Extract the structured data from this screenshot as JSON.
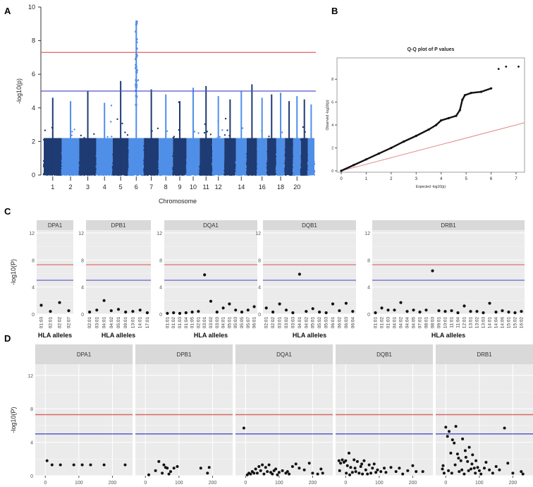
{
  "chart_data": [
    {
      "panel": "A",
      "type": "scatter",
      "subtype": "manhattan",
      "xlabel": "Chromosome",
      "ylabel": "-log10(p)",
      "ylim": [
        0,
        10
      ],
      "yticks": [
        "0",
        "2",
        "4",
        "6",
        "8",
        "10"
      ],
      "xtick_labels": [
        "1",
        "2",
        "3",
        "4",
        "5",
        "6",
        "7",
        "8",
        "9",
        "10",
        "11",
        "12",
        "14",
        "16",
        "18",
        "20"
      ],
      "chromosomes": [
        {
          "chr": 1,
          "peak": 4.6
        },
        {
          "chr": 2,
          "peak": 4.4
        },
        {
          "chr": 3,
          "peak": 5.0
        },
        {
          "chr": 4,
          "peak": 4.3
        },
        {
          "chr": 5,
          "peak": 5.6
        },
        {
          "chr": 6,
          "peak": 9.2
        },
        {
          "chr": 7,
          "peak": 5.1
        },
        {
          "chr": 8,
          "peak": 4.8
        },
        {
          "chr": 9,
          "peak": 4.4
        },
        {
          "chr": 10,
          "peak": 5.2
        },
        {
          "chr": 11,
          "peak": 5.3
        },
        {
          "chr": 12,
          "peak": 4.7
        },
        {
          "chr": 13,
          "peak": 4.5
        },
        {
          "chr": 14,
          "peak": 5.0
        },
        {
          "chr": 15,
          "peak": 5.4
        },
        {
          "chr": 16,
          "peak": 4.6
        },
        {
          "chr": 17,
          "peak": 4.8
        },
        {
          "chr": 18,
          "peak": 4.9
        },
        {
          "chr": 19,
          "peak": 4.4
        },
        {
          "chr": 20,
          "peak": 4.7
        },
        {
          "chr": 21,
          "peak": 4.5
        },
        {
          "chr": 22,
          "peak": 4.2
        }
      ],
      "thresholds": [
        {
          "value": 7.3,
          "color": "#e06060"
        },
        {
          "value": 5.0,
          "color": "#5555cc"
        }
      ],
      "colors": {
        "dark": "#1f3b73",
        "light": "#4f8fe8"
      }
    },
    {
      "panel": "B",
      "type": "scatter",
      "subtype": "qq",
      "title": "Q-Q plot of P values",
      "xlabel": "Expected -log10(p)",
      "ylabel": "Observed -log10(p)",
      "xlim": [
        0,
        7
      ],
      "ylim": [
        0,
        9
      ],
      "xticks": [
        "0",
        "1",
        "2",
        "3",
        "4",
        "5",
        "6",
        "7"
      ],
      "yticks": [
        "0",
        "2",
        "4",
        "6",
        "8"
      ],
      "points": [
        [
          0,
          0
        ],
        [
          0.5,
          0.5
        ],
        [
          1,
          1
        ],
        [
          1.5,
          1.5
        ],
        [
          2,
          2
        ],
        [
          2.5,
          2.55
        ],
        [
          3,
          3.05
        ],
        [
          3.5,
          3.6
        ],
        [
          3.8,
          4.0
        ],
        [
          4.0,
          4.4
        ],
        [
          4.3,
          4.6
        ],
        [
          4.6,
          4.8
        ],
        [
          4.75,
          5.3
        ],
        [
          4.85,
          6.2
        ],
        [
          4.95,
          6.6
        ],
        [
          5.2,
          6.8
        ],
        [
          5.6,
          6.9
        ],
        [
          6.0,
          7.2
        ],
        [
          6.3,
          8.9
        ],
        [
          6.6,
          9.1
        ],
        [
          7.1,
          9.1
        ]
      ],
      "reference_line": [
        [
          0,
          0
        ],
        [
          7.4,
          4.2
        ]
      ]
    },
    {
      "panel": "C",
      "type": "scatter",
      "xlabel": "HLA alleles",
      "ylabel": "-log10(P)",
      "ylim": [
        0,
        12
      ],
      "yticks": [
        "0",
        "4",
        "8",
        "12"
      ],
      "thresholds": [
        {
          "value": 7.3,
          "color": "#e06060"
        },
        {
          "value": 5.0,
          "color": "#5555cc"
        }
      ],
      "facets": [
        {
          "name": "DPA1",
          "alleles": [
            "01:03",
            "02:01",
            "02:02",
            "02:07"
          ],
          "values": [
            1.3,
            0.4,
            1.7,
            0.5
          ]
        },
        {
          "name": "DPB1",
          "alleles": [
            "02:01",
            "03:01",
            "04:01",
            "04:02",
            "05:01",
            "09:01",
            "13:01",
            "14:01",
            "17:01"
          ],
          "values": [
            0.3,
            0.6,
            2.0,
            0.5,
            0.7,
            0.3,
            0.4,
            0.6,
            0.2
          ]
        },
        {
          "name": "DQA1",
          "alleles": [
            "01:01",
            "01:02",
            "01:03",
            "01:04",
            "01:05",
            "02:01",
            "03:01",
            "03:02",
            "03:03",
            "04:01",
            "05:01",
            "05:03",
            "05:05",
            "05:07",
            "06:01"
          ],
          "values": [
            0.1,
            0.2,
            0.1,
            0.2,
            0.3,
            0.4,
            5.8,
            1.9,
            0.3,
            0.9,
            1.5,
            0.6,
            0.3,
            0.6,
            1.1
          ],
          "ticks_at": [
            0,
            1,
            2,
            3,
            4,
            5,
            7,
            8,
            9,
            10,
            11,
            12,
            13,
            14
          ]
        },
        {
          "name": "DQB1",
          "alleles": [
            "02:01",
            "02:02",
            "03:01",
            "03:02",
            "03:03",
            "04:01",
            "04:02",
            "05:01",
            "05:02",
            "05:03",
            "06:01",
            "06:02",
            "06:03",
            "06:04"
          ],
          "values": [
            0.9,
            0.3,
            1.5,
            0.6,
            0.2,
            5.9,
            0.4,
            0.8,
            0.3,
            0.2,
            1.5,
            0.5,
            1.6,
            0.4
          ],
          "ticks_at": [
            0,
            1,
            2,
            3,
            4,
            5,
            7,
            8,
            9,
            10,
            11,
            12,
            13
          ]
        },
        {
          "name": "DRB1",
          "alleles": [
            "01:01",
            "01:02",
            "01:03",
            "04:01",
            "04:02",
            "04:04",
            "04:05",
            "07:01",
            "08:01",
            "08:03",
            "09:01",
            "10:01",
            "11:01",
            "11:04",
            "12:01",
            "13:01",
            "13:02",
            "13:03",
            "14:01",
            "14:04",
            "14:06",
            "15:01",
            "15:02",
            "16:02"
          ],
          "values": [
            0.2,
            0.9,
            0.6,
            0.6,
            1.7,
            0.4,
            0.6,
            0.3,
            0.6,
            6.4,
            0.5,
            0.4,
            0.5,
            0.2,
            1.2,
            0.4,
            0.4,
            0.2,
            1.6,
            0.3,
            0.5,
            0.3,
            0.2,
            0.4
          ]
        }
      ]
    },
    {
      "panel": "D",
      "type": "scatter",
      "ylabel": "-log10(P)",
      "ylim": [
        0,
        13
      ],
      "yticks": [
        "0",
        "4",
        "8",
        "12"
      ],
      "xlim": [
        -30,
        260
      ],
      "xticks": [
        "0",
        "100",
        "200"
      ],
      "thresholds": [
        {
          "value": 7.3,
          "color": "#e06060"
        },
        {
          "value": 5.0,
          "color": "#5555cc"
        }
      ],
      "facets": [
        {
          "name": "DPA1",
          "points": [
            [
              5,
              1.8
            ],
            [
              20,
              1.3
            ],
            [
              45,
              1.3
            ],
            [
              85,
              1.3
            ],
            [
              110,
              1.3
            ],
            [
              135,
              1.3
            ],
            [
              175,
              1.3
            ],
            [
              238,
              1.3
            ]
          ]
        },
        {
          "name": "DPB1",
          "points": [
            [
              10,
              0.1
            ],
            [
              30,
              0.6
            ],
            [
              40,
              1.7
            ],
            [
              55,
              1.3
            ],
            [
              65,
              0.9
            ],
            [
              70,
              0.2
            ],
            [
              75,
              0.5
            ],
            [
              85,
              0.9
            ],
            [
              95,
              1.1
            ],
            [
              165,
              0.9
            ],
            [
              185,
              0.3
            ],
            [
              190,
              1.0
            ],
            [
              60,
              1.0
            ],
            [
              50,
              0.3
            ]
          ]
        },
        {
          "name": "DQA1",
          "points": [
            [
              -5,
              5.7
            ],
            [
              10,
              0.3
            ],
            [
              15,
              0.2
            ],
            [
              20,
              0.5
            ],
            [
              25,
              0.3
            ],
            [
              30,
              0.8
            ],
            [
              35,
              0.3
            ],
            [
              40,
              1.1
            ],
            [
              45,
              0.6
            ],
            [
              50,
              1.3
            ],
            [
              55,
              0.2
            ],
            [
              60,
              1.0
            ],
            [
              65,
              0.5
            ],
            [
              70,
              1.3
            ],
            [
              75,
              0.4
            ],
            [
              80,
              0.2
            ],
            [
              90,
              0.8
            ],
            [
              100,
              0.4
            ],
            [
              110,
              0.6
            ],
            [
              120,
              0.3
            ],
            [
              130,
              0.2
            ],
            [
              140,
              1.1
            ],
            [
              150,
              1.4
            ],
            [
              160,
              0.9
            ],
            [
              175,
              0.7
            ],
            [
              190,
              1.5
            ],
            [
              200,
              0.3
            ],
            [
              215,
              0.2
            ],
            [
              225,
              0.8
            ],
            [
              230,
              0.3
            ],
            [
              5,
              0.1
            ],
            [
              85,
              0.6
            ],
            [
              95,
              0.1
            ],
            [
              125,
              0.5
            ]
          ]
        },
        {
          "name": "DQB1",
          "points": [
            [
              -20,
              1.8
            ],
            [
              -15,
              1.5
            ],
            [
              -10,
              1.9
            ],
            [
              -5,
              1.6
            ],
            [
              0,
              1.8
            ],
            [
              5,
              1.2
            ],
            [
              10,
              2.7
            ],
            [
              15,
              1.0
            ],
            [
              20,
              0.4
            ],
            [
              25,
              1.9
            ],
            [
              30,
              0.5
            ],
            [
              35,
              1.7
            ],
            [
              40,
              0.3
            ],
            [
              45,
              1.1
            ],
            [
              50,
              0.2
            ],
            [
              55,
              1.8
            ],
            [
              60,
              0.7
            ],
            [
              65,
              0.2
            ],
            [
              70,
              1.3
            ],
            [
              75,
              0.3
            ],
            [
              80,
              0.9
            ],
            [
              85,
              1.4
            ],
            [
              90,
              0.4
            ],
            [
              95,
              0.7
            ],
            [
              105,
              0.5
            ],
            [
              115,
              0.9
            ],
            [
              120,
              0.4
            ],
            [
              135,
              1.0
            ],
            [
              150,
              0.5
            ],
            [
              160,
              0.9
            ],
            [
              170,
              0.2
            ],
            [
              185,
              0.6
            ],
            [
              200,
              1.2
            ],
            [
              210,
              0.5
            ],
            [
              230,
              0.5
            ],
            [
              -18,
              0.6
            ],
            [
              2,
              0.3
            ],
            [
              12,
              0.1
            ],
            [
              28,
              0.9
            ],
            [
              48,
              1.4
            ]
          ]
        },
        {
          "name": "DRB1",
          "points": [
            [
              -10,
              0.8
            ],
            [
              -5,
              0.3
            ],
            [
              0,
              5.8
            ],
            [
              5,
              4.7
            ],
            [
              10,
              5.3
            ],
            [
              15,
              2.7
            ],
            [
              20,
              4.3
            ],
            [
              25,
              3.9
            ],
            [
              30,
              5.9
            ],
            [
              35,
              2.6
            ],
            [
              40,
              0.5
            ],
            [
              45,
              1.8
            ],
            [
              50,
              4.4
            ],
            [
              55,
              0.2
            ],
            [
              60,
              2.2
            ],
            [
              65,
              1.7
            ],
            [
              70,
              3.4
            ],
            [
              75,
              0.8
            ],
            [
              80,
              2.5
            ],
            [
              85,
              0.9
            ],
            [
              90,
              1.8
            ],
            [
              95,
              1.0
            ],
            [
              100,
              0.6
            ],
            [
              105,
              0.2
            ],
            [
              115,
              0.9
            ],
            [
              120,
              1.6
            ],
            [
              130,
              0.7
            ],
            [
              140,
              0.3
            ],
            [
              150,
              1.1
            ],
            [
              160,
              0.7
            ],
            [
              175,
              5.7
            ],
            [
              185,
              1.5
            ],
            [
              200,
              0.3
            ],
            [
              225,
              0.5
            ],
            [
              230,
              0.2
            ],
            [
              -8,
              1.2
            ],
            [
              8,
              0.6
            ],
            [
              18,
              0.3
            ],
            [
              28,
              1.3
            ],
            [
              38,
              2.1
            ],
            [
              48,
              0.7
            ],
            [
              58,
              3.0
            ],
            [
              68,
              0.6
            ],
            [
              78,
              1.4
            ],
            [
              88,
              0.3
            ]
          ]
        }
      ]
    }
  ],
  "panel_letters": [
    "A",
    "B",
    "C",
    "D"
  ]
}
